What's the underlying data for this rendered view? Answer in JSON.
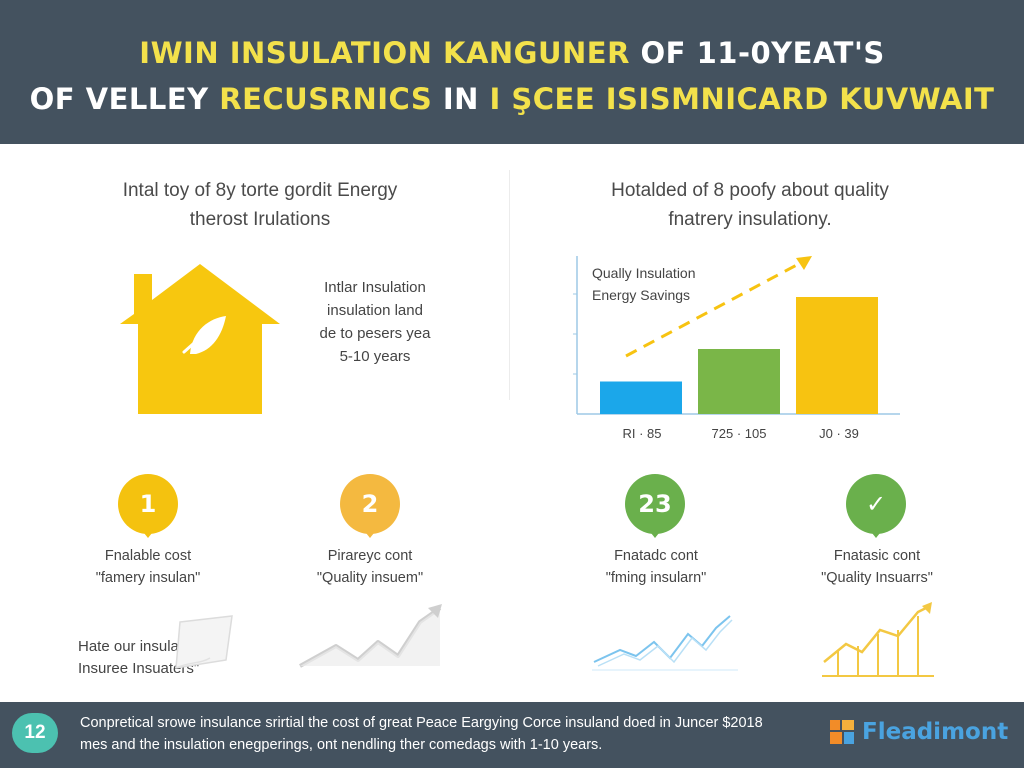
{
  "header": {
    "line1": {
      "part1": "IWIN INSULATION KANGUNER",
      "part2": " OF 11-0YEAT'S"
    },
    "line2": {
      "part1": "OF VELLEY ",
      "part2": "RECUSRNICS",
      "part3": " IN ",
      "part4": "I ŞCEE ISISMNICARD KUVWAIT"
    }
  },
  "left_section": {
    "title_line1": "Intal toy of 8y torte gordit Energy",
    "title_line2": "therost Irulations",
    "house_note": [
      "Intlar Insulation",
      "insulation land",
      "de to pesers yea",
      "5-10 years"
    ]
  },
  "right_section": {
    "title_line1": "Hotalded of 8 poofy about quality",
    "title_line2": "fnatrery insulationy."
  },
  "chart_data": {
    "type": "bar",
    "legend": [
      "Qually Insulation",
      "Energy Savings"
    ],
    "categories": [
      "RI · 85",
      "725 · 105",
      "J0 · 39"
    ],
    "values": [
      25,
      50,
      90
    ],
    "colors": [
      "#1ba7ea",
      "#7ab648",
      "#f7c311"
    ],
    "trend_color": "#f7c311",
    "ylim": [
      0,
      100
    ]
  },
  "badges": [
    {
      "label": "1",
      "caption": [
        "Fnalable cost",
        "\"famery insulan\""
      ]
    },
    {
      "label": "2",
      "caption": [
        "Pirareyc cont",
        "\"Quality insuem\""
      ]
    },
    {
      "label": "23",
      "caption": [
        "Fnatadc cont",
        "\"fming insularn\""
      ]
    },
    {
      "label": "✓",
      "caption": [
        "Fnatasic cont",
        "\"Quality Insuarrs\""
      ]
    }
  ],
  "bottom_note": [
    "Hate our insulation",
    "Insuree Insuaters\""
  ],
  "footer": {
    "number": "12",
    "text_line1": "Conpretical srowe insulance srirtial the cost of great Peace Eargying Corce insuland doed in Juncer $2018",
    "text_line2": "mes and the insulation enegperings, ont nendling ther comedags with 1-10 years.",
    "brand": "Fleadimont"
  },
  "colors": {
    "header_bg": "#44525f",
    "accent_yellow": "#f3e14b",
    "house": "#f7c70f",
    "blue": "#1ba7ea",
    "green": "#7ab648"
  }
}
